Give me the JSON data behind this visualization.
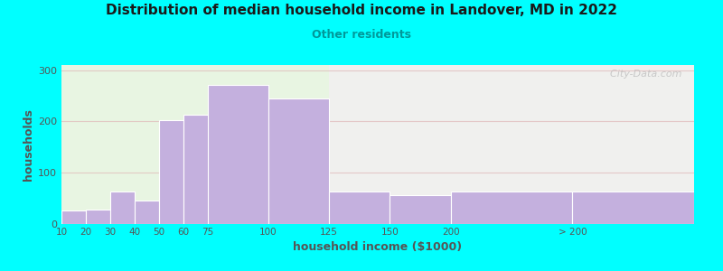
{
  "title": "Distribution of median household income in Landover, MD in 2022",
  "subtitle": "Other residents",
  "xlabel": "household income ($1000)",
  "ylabel": "households",
  "background_outer": "#00FFFF",
  "background_inner_left": "#e8f5e2",
  "background_inner_right": "#f0f0ee",
  "bar_color": "#c4b0de",
  "bar_edge_color": "#ffffff",
  "title_color": "#1a1a1a",
  "subtitle_color": "#00999a",
  "axis_label_color": "#555555",
  "tick_label_color": "#555555",
  "watermark": "  City-Data.com",
  "categories": [
    "10",
    "20",
    "30",
    "40",
    "50",
    "60",
    "75",
    "100",
    "125",
    "150",
    "200",
    "> 200"
  ],
  "values": [
    25,
    28,
    63,
    45,
    203,
    213,
    272,
    245,
    63,
    55,
    63,
    63
  ],
  "bar_widths": [
    10,
    10,
    10,
    10,
    10,
    15,
    25,
    25,
    25,
    25,
    50,
    50
  ],
  "bar_lefts": [
    5,
    15,
    25,
    35,
    45,
    55,
    65,
    90,
    115,
    140,
    165,
    215
  ],
  "xlim": [
    5,
    265
  ],
  "ylim": [
    0,
    310
  ],
  "yticks": [
    0,
    100,
    200,
    300
  ],
  "grid_color": "#e0b8b8",
  "grid_alpha": 0.7,
  "split_x": 115
}
